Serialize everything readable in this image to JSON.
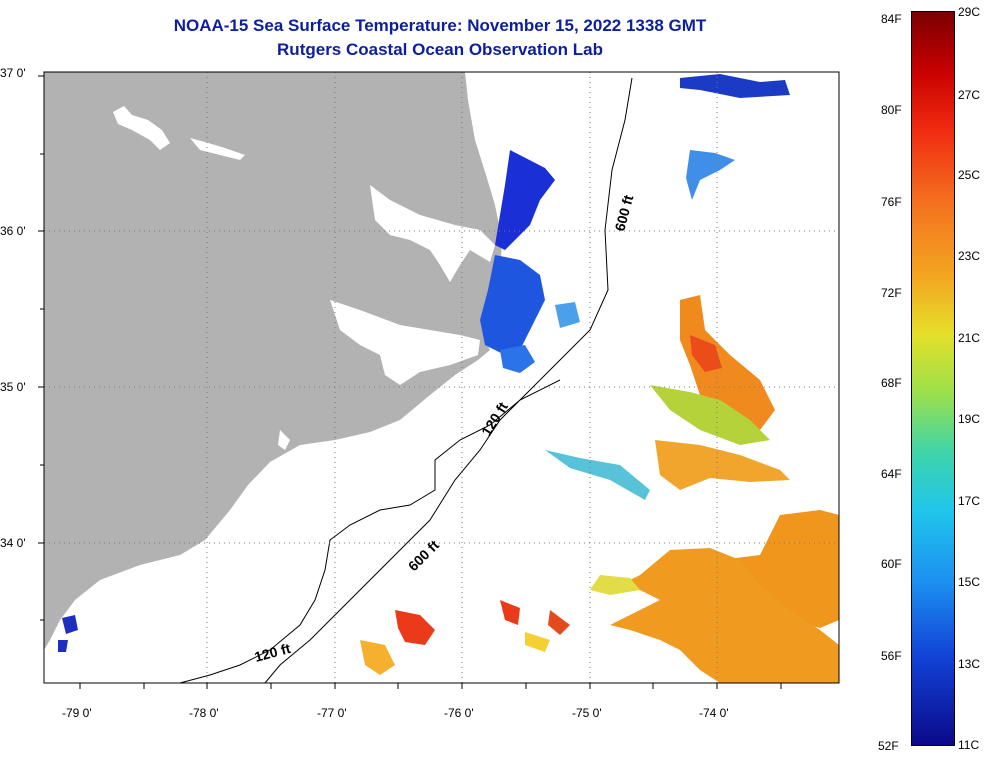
{
  "header": {
    "title": "NOAA-15 Sea Surface Temperature:  November 15, 2022 1338 GMT",
    "subtitle": "Rutgers Coastal Ocean Observation Lab"
  },
  "map": {
    "lat_labels": [
      "37 0'",
      "36 0'",
      "35 0'",
      "34 0'"
    ],
    "lon_labels": [
      "-79 0'",
      "-78 0'",
      "-77 0'",
      "-76 0'",
      "-75 0'",
      "-74 0'"
    ],
    "contour_labels": [
      "600 ft",
      "120 ft",
      "600 ft",
      "120 ft"
    ],
    "land_color": "#b2b2b2",
    "ocean_color": "#ffffff"
  },
  "colorbar": {
    "fahrenheit": [
      "84F",
      "80F",
      "76F",
      "72F",
      "68F",
      "64F",
      "60F",
      "56F",
      "52F"
    ],
    "celsius": [
      "29C",
      "27C",
      "25C",
      "23C",
      "21C",
      "19C",
      "17C",
      "15C",
      "13C",
      "11C"
    ]
  }
}
